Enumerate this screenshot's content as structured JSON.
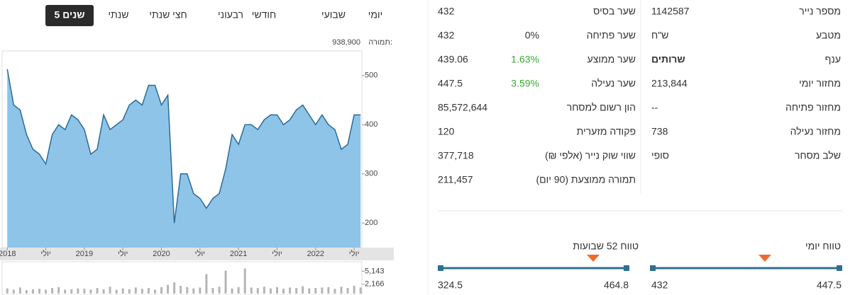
{
  "tabs": [
    "יומי",
    "שבועי",
    "חודשי",
    "רבעוני",
    "חצי שנתי",
    "שנתי",
    "5 שנים"
  ],
  "chart": {
    "type": "area",
    "turnover_label": "תמורה:",
    "turnover": "938,900",
    "color": "#8ec4e8",
    "line_color": "#2a6b96",
    "values": [
      513,
      440,
      430,
      380,
      350,
      340,
      320,
      380,
      400,
      390,
      420,
      410,
      390,
      340,
      350,
      420,
      390,
      400,
      410,
      440,
      450,
      440,
      480,
      480,
      440,
      460,
      200,
      300,
      300,
      260,
      250,
      230,
      250,
      260,
      310,
      380,
      360,
      400,
      400,
      390,
      410,
      420,
      420,
      400,
      410,
      430,
      440,
      420,
      400,
      420,
      400,
      390,
      350,
      360,
      420,
      420
    ],
    "xlim": [
      -0.8,
      55.2
    ],
    "xticks": [
      {
        "value": 0,
        "label": "2018"
      },
      {
        "value": 6,
        "label": "יולי"
      },
      {
        "value": 12,
        "label": "2019"
      },
      {
        "value": 18,
        "label": "יולי"
      },
      {
        "value": 24,
        "label": "2020"
      },
      {
        "value": 30,
        "label": "יולי"
      },
      {
        "value": 36,
        "label": "2021"
      },
      {
        "value": 42,
        "label": "יולי"
      },
      {
        "value": 48,
        "label": "2022"
      },
      {
        "value": 54,
        "label": "יולי"
      }
    ],
    "ylim": [
      150,
      550
    ],
    "yticks": [
      200,
      300,
      400,
      500
    ],
    "volume": {
      "color": "#b5b5b5",
      "values": [
        1200,
        900,
        1400,
        800,
        1000,
        1100,
        900,
        1300,
        1500,
        900,
        1000,
        1200,
        1100,
        900,
        1300,
        1000,
        1600,
        900,
        1200,
        1000,
        1400,
        1100,
        1300,
        900,
        1500,
        2000,
        2600,
        1800,
        1500,
        1200,
        1400,
        4500,
        1300,
        1600,
        5300,
        1200,
        1500,
        5800,
        1400,
        1300,
        1600,
        1200,
        1500,
        1100,
        1400,
        1300,
        1700,
        1200,
        1300,
        1400,
        1500,
        1100,
        1600,
        1300,
        1800,
        1400
      ],
      "ylim": [
        0,
        7350
      ],
      "yticks": [
        {
          "value": 5143,
          "label": "5,143"
        },
        {
          "value": 2166,
          "label": "2,166"
        }
      ]
    }
  },
  "details": [
    {
      "label": "שער בסיס",
      "value": "432"
    },
    {
      "label": "שער פתיחה",
      "value": "432",
      "change": "0%"
    },
    {
      "label": "שער ממוצע",
      "value": "439.06",
      "change": "1.63%"
    },
    {
      "label": "שער נעילה",
      "value": "447.5",
      "change": "3.59%"
    },
    {
      "label": "הון רשום למסחר",
      "value": "85,572,644"
    },
    {
      "label": "פקודה מזערית",
      "value": "120"
    },
    {
      "label": "שווי שוק נייר (אלפי ₪)",
      "value": "377,718"
    },
    {
      "label": "תמורה ממוצעת (90 יום)",
      "value": "211,457"
    }
  ],
  "info": [
    {
      "label": "מספר נייר",
      "value": "1142587"
    },
    {
      "label": "מטבע",
      "value": "ש\"ח"
    },
    {
      "label": "ענף",
      "value": "שרותים"
    },
    {
      "label": "מחזור יומי",
      "value": "213,844"
    },
    {
      "label": "מחזור פתיחה",
      "value": "--"
    },
    {
      "label": "מחזור נעילה",
      "value": "738"
    },
    {
      "label": "שלב מסחר",
      "value": "סופי"
    }
  ],
  "ranges": {
    "week52": {
      "title": "טווח 52 שבועות",
      "low": "324.5",
      "high": "464.8"
    },
    "daily": {
      "title": "טווח יומי",
      "low": "432",
      "high": "447.5"
    }
  }
}
